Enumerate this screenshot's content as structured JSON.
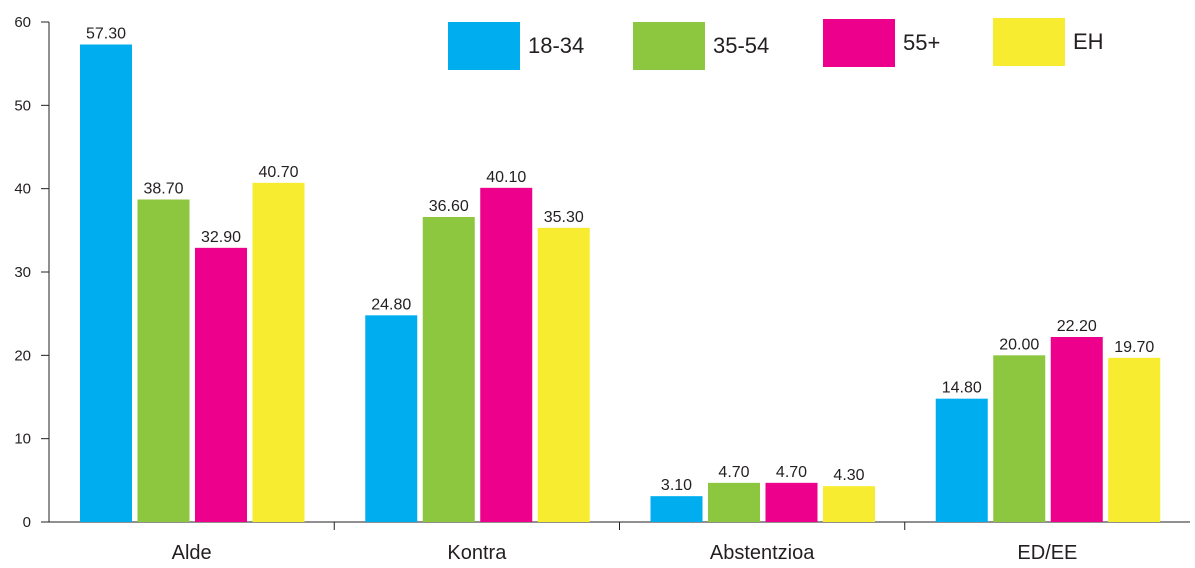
{
  "chart_data": {
    "type": "bar",
    "categories": [
      "Alde",
      "Kontra",
      "Abstentzioa",
      "ED/EE"
    ],
    "series": [
      {
        "name": "18-34",
        "color": "#00aeef",
        "values": [
          57.3,
          24.8,
          3.1,
          14.8
        ],
        "labels": [
          "57.30",
          "24.80",
          "3.10",
          "14.80"
        ]
      },
      {
        "name": "35-54",
        "color": "#8dc63f",
        "values": [
          38.7,
          36.6,
          4.7,
          20.0
        ],
        "labels": [
          "38.70",
          "36.60",
          "4.70",
          "20.00"
        ]
      },
      {
        "name": "55+",
        "color": "#ec008c",
        "values": [
          32.9,
          40.1,
          4.7,
          22.2
        ],
        "labels": [
          "32.90",
          "40.10",
          "4.70",
          "22.20"
        ]
      },
      {
        "name": "EH",
        "color": "#f7ec2f",
        "values": [
          40.7,
          35.3,
          4.3,
          19.7
        ],
        "labels": [
          "40.70",
          "35.30",
          "4.30",
          "19.70"
        ]
      }
    ],
    "yticks": [
      "0",
      "10",
      "20",
      "30",
      "40",
      "50",
      "60"
    ],
    "ylim": [
      0,
      60
    ],
    "xlabel": "",
    "ylabel": "",
    "title": "",
    "grid": false,
    "legend": "top-right"
  }
}
